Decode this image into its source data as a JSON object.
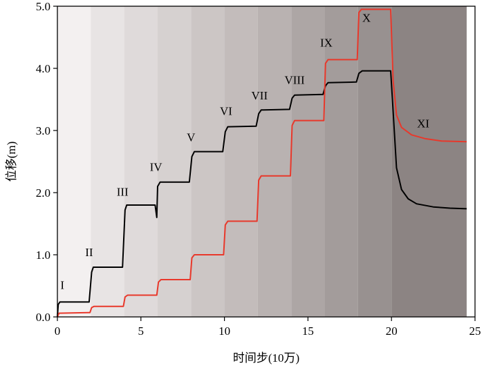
{
  "chart_data": {
    "type": "line",
    "xlabel": "时间步(10万)",
    "ylabel": "位移(m)",
    "xlim": [
      0,
      25
    ],
    "ylim": [
      0.0,
      5.0
    ],
    "x_ticks": [
      0,
      5,
      10,
      15,
      20,
      25
    ],
    "y_ticks": [
      0.0,
      1.0,
      2.0,
      3.0,
      4.0,
      5.0
    ],
    "x_tick_labels": [
      "0",
      "5",
      "10",
      "15",
      "20",
      "25"
    ],
    "y_tick_labels": [
      "0.0",
      "1.0",
      "2.0",
      "3.0",
      "4.0",
      "5.0"
    ],
    "grid": false,
    "legend": "none",
    "background_bands": {
      "boundaries": [
        0,
        2,
        4,
        6,
        8,
        10,
        12,
        14,
        16,
        18,
        20,
        24.5
      ],
      "colors": [
        "#f3f0f0",
        "#e8e4e4",
        "#dfdada",
        "#d6d1d0",
        "#ccc6c5",
        "#c3bcbb",
        "#b9b2b1",
        "#ada6a5",
        "#a39c9b",
        "#989190",
        "#8c8483"
      ]
    },
    "series": [
      {
        "color": "#000000",
        "points": [
          [
            0,
            0.0
          ],
          [
            0.05,
            0.2
          ],
          [
            0.15,
            0.24
          ],
          [
            1.9,
            0.24
          ],
          [
            2.05,
            0.72
          ],
          [
            2.15,
            0.8
          ],
          [
            3.9,
            0.8
          ],
          [
            4.05,
            1.72
          ],
          [
            4.15,
            1.8
          ],
          [
            5.85,
            1.8
          ],
          [
            5.95,
            1.6
          ],
          [
            6.0,
            2.1
          ],
          [
            6.15,
            2.17
          ],
          [
            7.9,
            2.17
          ],
          [
            8.05,
            2.58
          ],
          [
            8.2,
            2.66
          ],
          [
            9.9,
            2.66
          ],
          [
            10.05,
            2.98
          ],
          [
            10.2,
            3.06
          ],
          [
            11.9,
            3.07
          ],
          [
            12.05,
            3.27
          ],
          [
            12.2,
            3.33
          ],
          [
            13.9,
            3.34
          ],
          [
            14.05,
            3.52
          ],
          [
            14.2,
            3.57
          ],
          [
            15.9,
            3.58
          ],
          [
            16.05,
            3.72
          ],
          [
            16.2,
            3.77
          ],
          [
            17.9,
            3.78
          ],
          [
            18.05,
            3.92
          ],
          [
            18.25,
            3.96
          ],
          [
            19.95,
            3.96
          ],
          [
            20.1,
            3.3
          ],
          [
            20.3,
            2.4
          ],
          [
            20.6,
            2.05
          ],
          [
            21.0,
            1.9
          ],
          [
            21.5,
            1.82
          ],
          [
            22.5,
            1.77
          ],
          [
            23.5,
            1.75
          ],
          [
            24.5,
            1.74
          ]
        ]
      },
      {
        "color": "#e8382b",
        "points": [
          [
            0,
            0.0
          ],
          [
            0.1,
            0.06
          ],
          [
            1.95,
            0.07
          ],
          [
            2.05,
            0.15
          ],
          [
            2.2,
            0.17
          ],
          [
            3.95,
            0.17
          ],
          [
            4.05,
            0.32
          ],
          [
            4.2,
            0.35
          ],
          [
            5.95,
            0.35
          ],
          [
            6.05,
            0.56
          ],
          [
            6.2,
            0.6
          ],
          [
            7.95,
            0.6
          ],
          [
            8.05,
            0.95
          ],
          [
            8.2,
            1.0
          ],
          [
            9.95,
            1.0
          ],
          [
            10.05,
            1.48
          ],
          [
            10.2,
            1.54
          ],
          [
            11.95,
            1.54
          ],
          [
            12.05,
            2.2
          ],
          [
            12.2,
            2.27
          ],
          [
            13.95,
            2.27
          ],
          [
            14.05,
            3.08
          ],
          [
            14.2,
            3.16
          ],
          [
            15.95,
            3.16
          ],
          [
            16.05,
            4.08
          ],
          [
            16.2,
            4.14
          ],
          [
            17.95,
            4.14
          ],
          [
            18.05,
            4.9
          ],
          [
            18.2,
            4.95
          ],
          [
            19.95,
            4.95
          ],
          [
            20.1,
            3.8
          ],
          [
            20.3,
            3.25
          ],
          [
            20.6,
            3.05
          ],
          [
            21.2,
            2.93
          ],
          [
            22.0,
            2.87
          ],
          [
            23.0,
            2.83
          ],
          [
            24.5,
            2.82
          ]
        ]
      }
    ],
    "annotations": [
      {
        "text": "I",
        "x": 0.3,
        "y": 0.45
      },
      {
        "text": "II",
        "x": 1.9,
        "y": 0.98
      },
      {
        "text": "III",
        "x": 3.9,
        "y": 1.95
      },
      {
        "text": "IV",
        "x": 5.9,
        "y": 2.35
      },
      {
        "text": "V",
        "x": 8.0,
        "y": 2.83
      },
      {
        "text": "VI",
        "x": 10.1,
        "y": 3.25
      },
      {
        "text": "VII",
        "x": 12.1,
        "y": 3.5
      },
      {
        "text": "VIII",
        "x": 14.2,
        "y": 3.75
      },
      {
        "text": "IX",
        "x": 16.1,
        "y": 4.35
      },
      {
        "text": "X",
        "x": 18.5,
        "y": 4.75
      },
      {
        "text": "XI",
        "x": 21.9,
        "y": 3.05
      }
    ]
  }
}
